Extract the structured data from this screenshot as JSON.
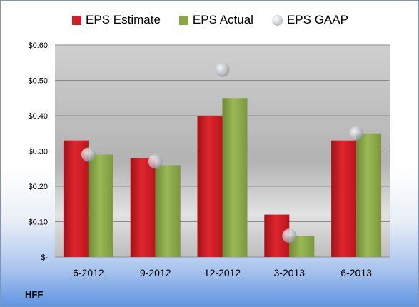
{
  "company": "HFF",
  "chart_data": {
    "type": "bar",
    "categories": [
      "6-2012",
      "9-2012",
      "12-2012",
      "3-2013",
      "6-2013"
    ],
    "series": [
      {
        "name": "EPS Estimate",
        "kind": "bar",
        "color": "#cc1f26",
        "values": [
          0.33,
          0.28,
          0.4,
          0.12,
          0.33
        ]
      },
      {
        "name": "EPS Actual",
        "kind": "bar",
        "color": "#8aa84a",
        "values": [
          0.29,
          0.26,
          0.45,
          0.06,
          0.35
        ]
      },
      {
        "name": "EPS GAAP",
        "kind": "marker",
        "color": "#b9bdc3",
        "values": [
          0.29,
          0.27,
          0.53,
          0.06,
          0.35
        ]
      }
    ],
    "yticks": [
      "$-",
      "$0.10",
      "$0.20",
      "$0.30",
      "$0.40",
      "$0.50",
      "$0.60"
    ],
    "ylim": [
      0,
      0.6
    ],
    "grid": true,
    "legend_position": "top"
  }
}
